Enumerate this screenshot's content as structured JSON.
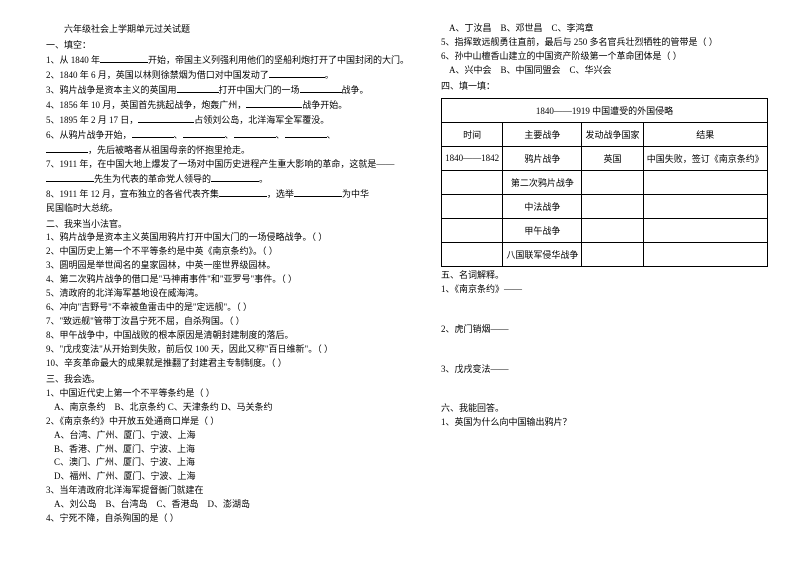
{
  "title": "六年级社会上学期单元过关试题",
  "sec1_heading": "一、填空：",
  "fill_in": {
    "q1_a": "1、从 1840 年",
    "q1_b": "开始，帝国主义列强利用他们的坚船利炮打开了中国封闭的大门。",
    "q2_a": "2、1840 年 6 月，英国以林则徐禁烟为借口对中国发动了",
    "q2_b": "。",
    "q3_a": "3、鸦片战争是资本主义的英国用",
    "q3_b": "打开中国大门的一场",
    "q3_c": "战争。",
    "q4_a": "4、1856 年 10 月，英国首先挑起战争，炮轰广州，",
    "q4_b": "战争开始。",
    "q5_a": "5、1895 年 2 月 17 日，",
    "q5_b": "占领刘公岛，北洋海军全军覆没。",
    "q6_a": "6、从鸦片战争开始，",
    "q6_b": "、",
    "q6_c": "、",
    "q6_d": "、",
    "q6_e": "、",
    "q6_f": "，先后被略者从祖国母亲的怀抱里抢走。",
    "q7_a": "7、1911 年，在中国大地上爆发了一场对中国历史进程产生重大影响的革命，这就是——",
    "q7_b": "先生为代表的革命党人领导的",
    "q7_c": "。",
    "q8_a": "8、1911 年 12 月，宣布独立的各省代表齐集",
    "q8_b": "，选举",
    "q8_c": "为中华",
    "q8_d": "民国临时大总统。"
  },
  "sec2_heading": "二、我来当小法官。",
  "judge": [
    "1、鸦片战争是资本主义英国用鸦片打开中国大门的一场侵略战争。（   ）",
    "2、中国历史上第一个不平等条约是中英《南京条约》。（   ）",
    "3、圆明园是举世闻名的皇家园林，中英一座世界级园林。",
    "4、第二次鸦片战争的借口是\"马神甫事件\"和\"亚罗号\"事件。（   ）",
    "5、清政府的北洋海军基地设在威海湾。",
    "6、冲向\"吉野号\"不幸被鱼雷击中的是\"定远舰\"。（   ）",
    "7、\"致远舰\"管带丁汝昌宁死不屈，自杀殉国。（   ）",
    "8、甲午战争中，中国战败的根本原因是清朝封建制度的落后。",
    "9、\"戊戌变法\"从开始到失败，前后仅 100 天，因此又称\"百日维新\"。（   ）",
    "10、辛亥革命最大的成果就是推翻了封建君主专制制度。（   ）"
  ],
  "sec3_heading": "三、我会选。",
  "choice": {
    "q1": "1、中国近代史上第一个不平等条约是（   ）",
    "q1_opts": "A、南京条约　B、北京条约 C、天津条约 D、马关条约",
    "q2": "2、《南京条约》中开放五处通商口岸是（   ）",
    "q2_a": "A、台湾、广州、厦门、宁波、上海",
    "q2_b": "B、香港、广州、厦门、宁波、上海",
    "q2_c": "C、澳门、广州、厦门、宁波、上海",
    "q2_d": "D、福州、广州、厦门、宁波、上海",
    "q3": "3、当年清政府北洋海军提督衙门就建在",
    "q3_opts": "A、刘公岛　B、台湾岛　C、香港岛　D、澎湖岛",
    "q4": "4、宁死不降，自杀殉国的是（   ）"
  },
  "right_top": {
    "q4_opts": "A、丁汝昌　B、邓世昌　C、李鸿章",
    "q5": "5、指挥致远舰勇往直前，最后与 250 多名官兵壮烈牺牲的管带是（   ）",
    "q6": "6、孙中山檀香山建立的中国资产阶级第一个革命团体是（   ）",
    "q6_opts": "A、兴中会　B、中国同盟会　C、华兴会"
  },
  "sec4_heading": "四、填一填：",
  "table": {
    "title": "1840——1919 中国遭受的外国侵略",
    "headers": [
      "时间",
      "主要战争",
      "发动战争国家",
      "结果"
    ],
    "rows": [
      [
        "1840——1842",
        "鸦片战争",
        "英国",
        "中国失败，签订《南京条约》"
      ],
      [
        "",
        "第二次鸦片战争",
        "",
        ""
      ],
      [
        "",
        "中法战争",
        "",
        ""
      ],
      [
        "",
        "甲午战争",
        "",
        ""
      ],
      [
        "",
        "八国联军侵华战争",
        "",
        ""
      ]
    ]
  },
  "sec5_heading": "五、名词解释。",
  "terms": {
    "t1": "1、《南京条约》——",
    "t2": "2、虎门销烟——",
    "t3": "3、戊戌变法——"
  },
  "sec6_heading": "六、我能回答。",
  "qa": {
    "q1": "1、英国为什么向中国输出鸦片？"
  },
  "colors": {
    "text": "#000000",
    "bg": "#ffffff"
  }
}
